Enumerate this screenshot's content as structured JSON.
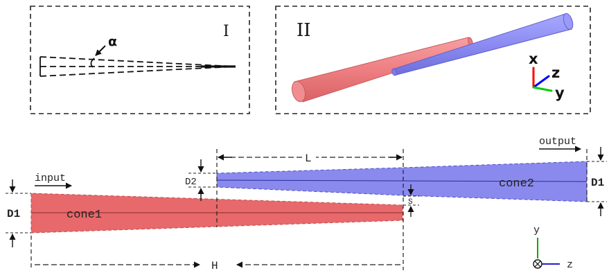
{
  "panel_i": {
    "label": "I",
    "angle_symbol": "α"
  },
  "panel_ii": {
    "label": "II",
    "axes": {
      "x": "x",
      "z": "z",
      "y": "y"
    },
    "colors": {
      "x": "#ff0000",
      "z": "#0000ff",
      "y": "#00cc00"
    }
  },
  "schematic": {
    "input_label": "input",
    "output_label": "output",
    "cone1_label": "cone1",
    "cone2_label": "cone2",
    "d1_left_label": "D1",
    "d1_right_label": "D1",
    "d2_label": "D2",
    "l_label": "L",
    "s_label": "S",
    "h_label": "H",
    "axis_y": "y",
    "axis_z": "z",
    "cone1_color": "#e8696b",
    "cone2_color": "#8888ee"
  }
}
